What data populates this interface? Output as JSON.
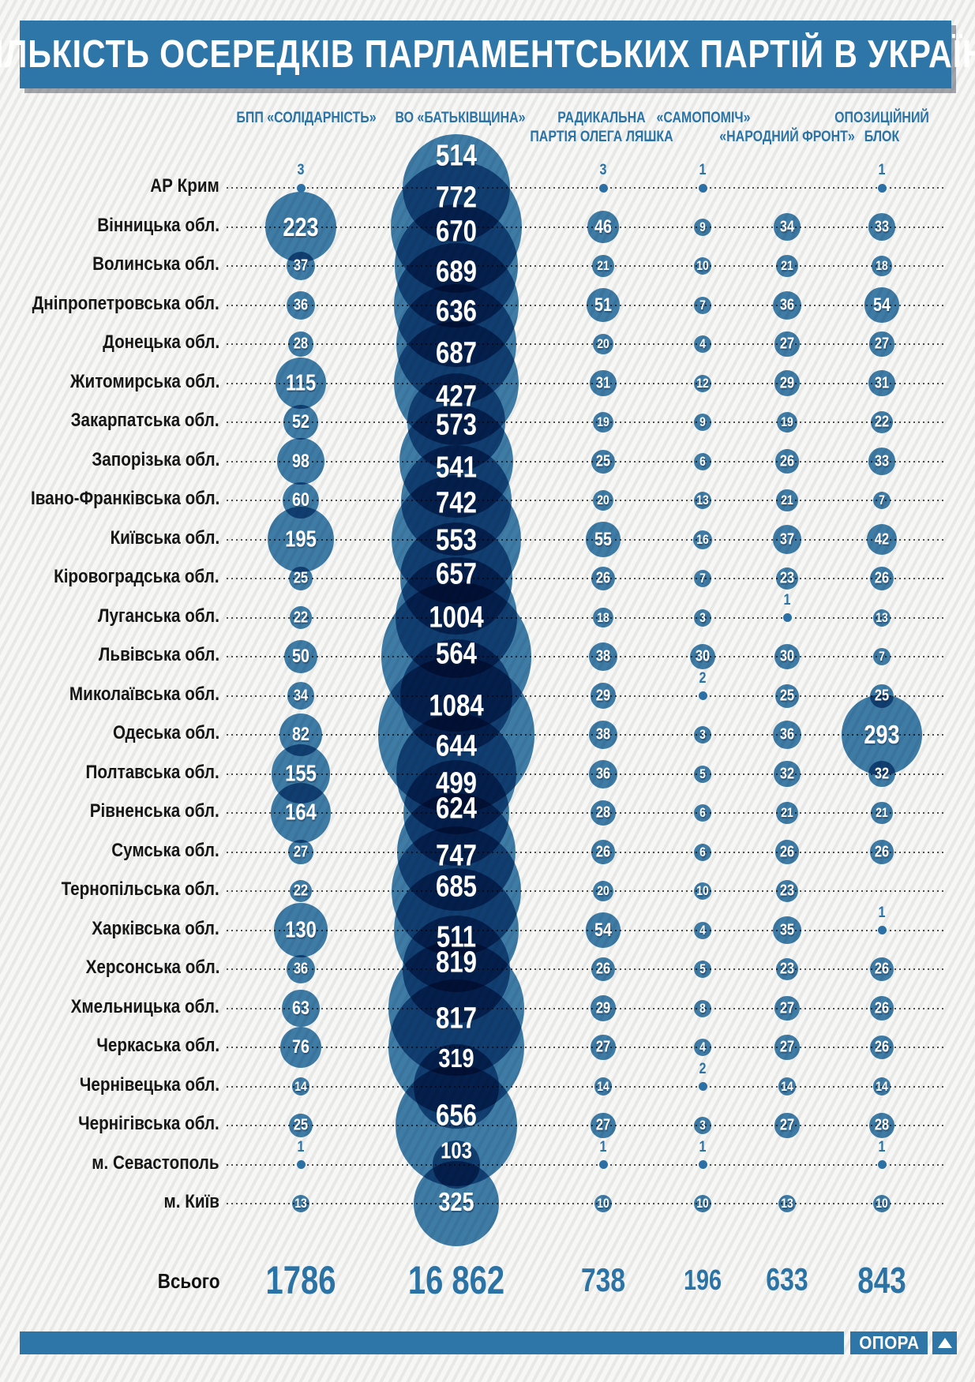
{
  "title": "КІЛЬКІСТЬ ОСЕРЕДКІВ ПАРЛАМЕНТСЬКИХ ПАРТІЙ В УКРАЇНІ",
  "footer": {
    "brand": "ОПОРА",
    "logo_icon": "triangle-up-icon"
  },
  "colors": {
    "accent": "#2e76a8",
    "bubble": "#2b72a3",
    "bubble_overlap_dark": "#20446b",
    "text_dark": "#161616",
    "background_stripe": "#e8e8e7"
  },
  "chart_data": {
    "type": "bubble",
    "title": "КІЛЬКІСТЬ ОСЕРЕДКІВ ПАРЛАМЕНТСЬКИХ ПАРТІЙ В УКРАЇНІ",
    "total_label": "Всього",
    "legend_position": "top",
    "grid": "dotted-row-lines",
    "size_encoding": "bubble area proportional to value",
    "categories": [
      "АР Крим",
      "Вінницька обл.",
      "Волинська обл.",
      "Дніпропетровська обл.",
      "Донецька обл.",
      "Житомирська обл.",
      "Закарпатська обл.",
      "Запорізька обл.",
      "Івано-Франківська обл.",
      "Київська обл.",
      "Кіровоградська обл.",
      "Луганська обл.",
      "Львівська обл.",
      "Миколаївська обл.",
      "Одеська обл.",
      "Полтавська обл.",
      "Рівненська обл.",
      "Сумська обл.",
      "Тернопільська обл.",
      "Харківська обл.",
      "Херсонська обл.",
      "Хмельницька обл.",
      "Черкаська обл.",
      "Чернівецька обл.",
      "Чернігівська обл.",
      "м. Севастополь",
      "м. Київ"
    ],
    "series": [
      {
        "id": "bpp",
        "name": "БПП «СОЛІДАРНІСТЬ»",
        "label_lines": [
          "БПП «СОЛІДАРНІСТЬ»"
        ],
        "total": 1786,
        "total_display": "1786",
        "values": [
          3,
          223,
          37,
          36,
          28,
          115,
          52,
          98,
          60,
          195,
          25,
          22,
          50,
          34,
          82,
          155,
          164,
          27,
          22,
          130,
          36,
          63,
          76,
          14,
          25,
          1,
          13
        ]
      },
      {
        "id": "bat",
        "name": "ВО «БАТЬКІВЩИНА»",
        "label_lines": [
          "ВО «БАТЬКІВЩИНА»"
        ],
        "total": 16862,
        "total_display": "16 862",
        "values": [
          514,
          772,
          670,
          689,
          636,
          687,
          427,
          573,
          541,
          742,
          553,
          657,
          1004,
          564,
          1084,
          644,
          499,
          624,
          747,
          685,
          511,
          819,
          817,
          319,
          656,
          103,
          325
        ]
      },
      {
        "id": "rpl",
        "name": "РАДИКАЛЬНА ПАРТІЯ ОЛЕГА ЛЯШКА",
        "label_lines": [
          "РАДИКАЛЬНА",
          "ПАРТІЯ ОЛЕГА ЛЯШКА"
        ],
        "total": 738,
        "total_display": "738",
        "values": [
          3,
          46,
          21,
          51,
          20,
          31,
          19,
          25,
          20,
          55,
          26,
          18,
          38,
          29,
          38,
          36,
          28,
          26,
          20,
          54,
          26,
          29,
          27,
          14,
          27,
          1,
          10
        ]
      },
      {
        "id": "sam",
        "name": "«САМОПОМІЧ»",
        "label_lines": [
          "«САМОПОМІЧ»"
        ],
        "total": 196,
        "total_display": "196",
        "values": [
          1,
          9,
          10,
          7,
          4,
          12,
          9,
          6,
          13,
          16,
          7,
          3,
          30,
          2,
          3,
          5,
          6,
          6,
          10,
          4,
          5,
          8,
          4,
          2,
          3,
          1,
          10
        ]
      },
      {
        "id": "nf",
        "name": "«НАРОДНИЙ ФРОНТ»",
        "label_lines": [
          "«НАРОДНИЙ ФРОНТ»"
        ],
        "total": 633,
        "total_display": "633",
        "values": [
          null,
          34,
          21,
          36,
          27,
          29,
          19,
          26,
          21,
          37,
          23,
          1,
          30,
          25,
          36,
          32,
          21,
          26,
          23,
          35,
          23,
          27,
          27,
          14,
          27,
          null,
          13
        ]
      },
      {
        "id": "ob",
        "name": "ОПОЗИЦІЙНИЙ БЛОК",
        "label_lines": [
          "ОПОЗИЦІЙНИЙ",
          "БЛОК"
        ],
        "total": 843,
        "total_display": "843",
        "values": [
          1,
          33,
          18,
          54,
          27,
          31,
          22,
          33,
          7,
          42,
          26,
          13,
          7,
          25,
          293,
          32,
          21,
          26,
          null,
          1,
          26,
          26,
          26,
          14,
          28,
          1,
          10
        ]
      }
    ]
  }
}
